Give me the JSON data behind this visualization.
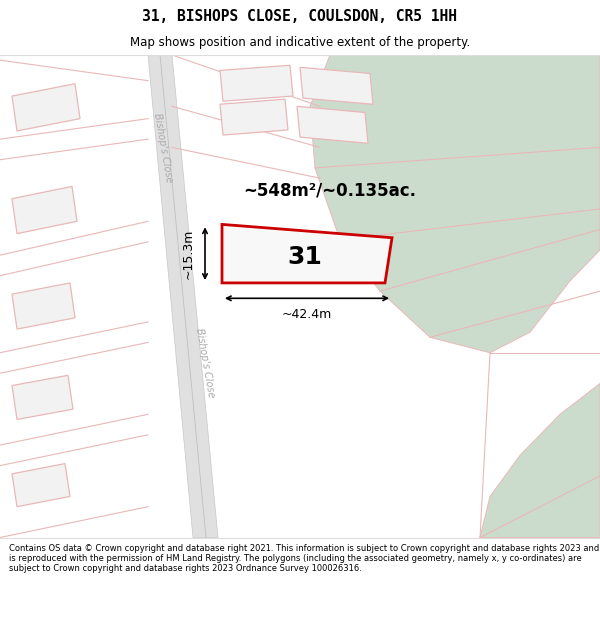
{
  "title": "31, BISHOPS CLOSE, COULSDON, CR5 1HH",
  "subtitle": "Map shows position and indicative extent of the property.",
  "footer": "Contains OS data © Crown copyright and database right 2021. This information is subject to Crown copyright and database rights 2023 and is reproduced with the permission of HM Land Registry. The polygons (including the associated geometry, namely x, y co-ordinates) are subject to Crown copyright and database rights 2023 Ordnance Survey 100026316.",
  "map_bg": "#ffffff",
  "green_area_color": "#ccdccc",
  "plot_outline_color": "#cc0000",
  "line_color": "#e8b8b8",
  "dim_line_color": "#000000",
  "area_text": "~548m²/~0.135ac.",
  "width_text": "~42.4m",
  "height_text": "~15.3m",
  "plot_number": "31",
  "road_label": "Bishop's Close"
}
